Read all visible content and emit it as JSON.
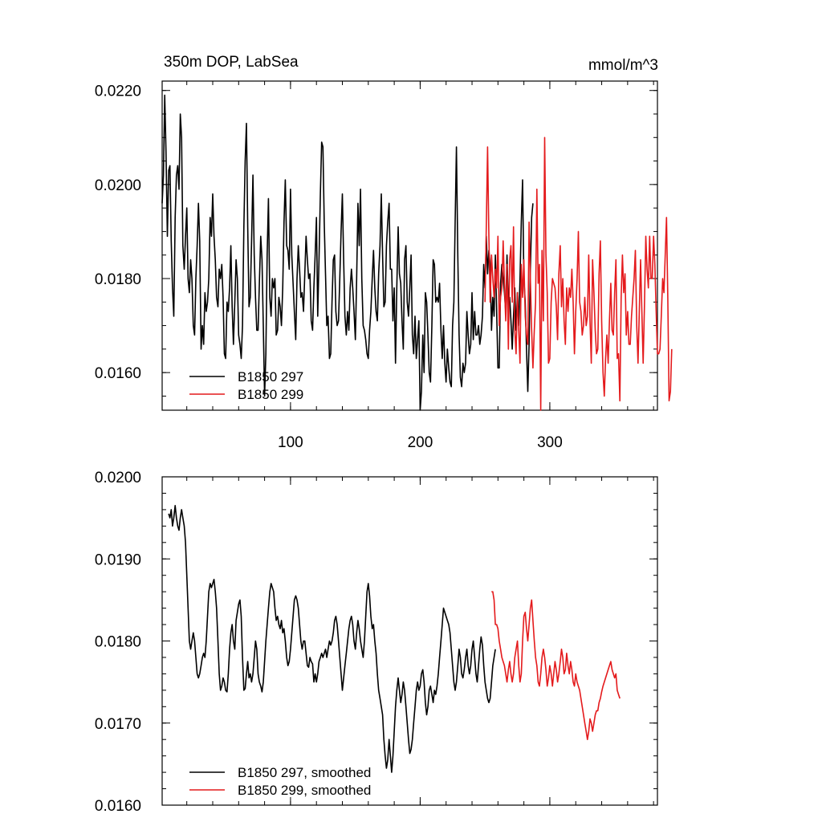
{
  "chart_data": [
    {
      "type": "line",
      "title": "350m DOP, LabSea",
      "units": "mmol/m^3",
      "xlabel": "",
      "ylabel": "",
      "xlim": [
        1,
        383
      ],
      "ylim": [
        0.0152,
        0.0222
      ],
      "y_ticks": [
        "0.0220",
        "0.0200",
        "0.0180",
        "0.0160"
      ],
      "x_ticks": [
        "100",
        "200",
        "300"
      ],
      "grid": false,
      "legend": "bottom-left",
      "series": [
        {
          "name": "B1850 297",
          "color": "#000000",
          "x_start": 1,
          "values": [
            0.0196,
            0.0202,
            0.0219,
            0.0207,
            0.0189,
            0.0203,
            0.0204,
            0.0188,
            0.0178,
            0.0172,
            0.0193,
            0.0202,
            0.0204,
            0.0199,
            0.0215,
            0.021,
            0.0187,
            0.0182,
            0.0189,
            0.0195,
            0.018,
            0.0177,
            0.0184,
            0.018,
            0.017,
            0.0168,
            0.018,
            0.0187,
            0.0196,
            0.0188,
            0.0165,
            0.017,
            0.0166,
            0.0177,
            0.0173,
            0.0175,
            0.018,
            0.0193,
            0.0189,
            0.0198,
            0.0189,
            0.0184,
            0.0176,
            0.0174,
            0.0182,
            0.018,
            0.0183,
            0.0176,
            0.0164,
            0.0163,
            0.0175,
            0.0173,
            0.0178,
            0.0187,
            0.0174,
            0.0166,
            0.0175,
            0.0184,
            0.018,
            0.0168,
            0.0166,
            0.0163,
            0.017,
            0.0191,
            0.0205,
            0.0213,
            0.0191,
            0.0174,
            0.0176,
            0.0188,
            0.0202,
            0.0185,
            0.0176,
            0.0169,
            0.0169,
            0.0179,
            0.0189,
            0.0184,
            0.017,
            0.0155,
            0.0164,
            0.0185,
            0.0197,
            0.0176,
            0.0172,
            0.018,
            0.0178,
            0.018,
            0.0168,
            0.0169,
            0.0176,
            0.0174,
            0.017,
            0.0178,
            0.0192,
            0.0201,
            0.0187,
            0.0186,
            0.0182,
            0.0199,
            0.0185,
            0.0179,
            0.0173,
            0.0167,
            0.018,
            0.0187,
            0.0182,
            0.0176,
            0.0177,
            0.0173,
            0.0181,
            0.0189,
            0.0184,
            0.018,
            0.0181,
            0.0171,
            0.0169,
            0.0178,
            0.0185,
            0.0193,
            0.0172,
            0.0184,
            0.0198,
            0.0209,
            0.0208,
            0.0192,
            0.0181,
            0.017,
            0.0172,
            0.0163,
            0.0164,
            0.0175,
            0.0184,
            0.0185,
            0.0173,
            0.017,
            0.0171,
            0.018,
            0.019,
            0.0198,
            0.0184,
            0.0172,
            0.0168,
            0.0173,
            0.0169,
            0.0178,
            0.0182,
            0.0178,
            0.0173,
            0.0167,
            0.018,
            0.0196,
            0.0187,
            0.0199,
            0.018,
            0.017,
            0.0169,
            0.0167,
            0.0164,
            0.0163,
            0.0169,
            0.0173,
            0.018,
            0.0186,
            0.0178,
            0.0173,
            0.0171,
            0.0181,
            0.0187,
            0.0198,
            0.0185,
            0.0174,
            0.0175,
            0.0187,
            0.0192,
            0.0196,
            0.0182,
            0.0182,
            0.0171,
            0.0178,
            0.0162,
            0.0178,
            0.0191,
            0.0181,
            0.0179,
            0.0171,
            0.0165,
            0.0184,
            0.0187,
            0.0175,
            0.0172,
            0.0178,
            0.0185,
            0.0168,
            0.0164,
            0.0172,
            0.0163,
            0.0167,
            0.0171,
            0.0152,
            0.0156,
            0.0168,
            0.016,
            0.0177,
            0.0175,
            0.0168,
            0.016,
            0.0158,
            0.017,
            0.0184,
            0.0183,
            0.0175,
            0.0176,
            0.0175,
            0.0179,
            0.0169,
            0.0163,
            0.017,
            0.0162,
            0.0158,
            0.0165,
            0.0161,
            0.0158,
            0.0157,
            0.017,
            0.0175,
            0.0192,
            0.0208,
            0.0185,
            0.0168,
            0.0159,
            0.0157,
            0.0162,
            0.016,
            0.0162,
            0.0173,
            0.0168,
            0.0164,
            0.0166,
            0.0177,
            0.0167,
            0.0173,
            0.0168,
            0.0168,
            0.017,
            0.0166,
            0.0168,
            0.0172,
            0.0183,
            0.0178,
            0.0189,
            0.0181,
            0.0186,
            0.0183,
            0.0169,
            0.0176,
            0.0172,
            0.0185,
            0.0173,
            0.0161,
            0.0161,
            0.0179,
            0.0183,
            0.018,
            0.0177,
            0.0173,
            0.0185,
            0.0174,
            0.0176,
            0.0171,
            0.0165,
            0.0172,
            0.0178,
            0.0169,
            0.0177,
            0.017,
            0.018,
            0.0192,
            0.0201,
            0.018,
            0.0175,
            0.0165,
            0.0156,
            0.0166,
            0.0182,
            0.0193,
            0.0196
          ]
        },
        {
          "name": "B1850 299",
          "color": "#e41a1c",
          "x_start": 250,
          "values": [
            0.0175,
            0.0191,
            0.0208,
            0.0189,
            0.0175,
            0.0185,
            0.018,
            0.0176,
            0.0182,
            0.0178,
            0.0189,
            0.017,
            0.0176,
            0.0178,
            0.0188,
            0.0179,
            0.0171,
            0.0183,
            0.0165,
            0.0184,
            0.0187,
            0.0175,
            0.0191,
            0.0169,
            0.0164,
            0.0177,
            0.0169,
            0.0162,
            0.0183,
            0.0176,
            0.0184,
            0.0172,
            0.0168,
            0.0166,
            0.0192,
            0.018,
            0.0169,
            0.0161,
            0.0169,
            0.0175,
            0.0199,
            0.0179,
            0.0183,
            0.0152,
            0.0186,
            0.0171,
            0.021,
            0.0185,
            0.0177,
            0.0162,
            0.0163,
            0.0175,
            0.018,
            0.0179,
            0.0178,
            0.0174,
            0.0167,
            0.0181,
            0.0187,
            0.0174,
            0.018,
            0.0171,
            0.0166,
            0.0178,
            0.0173,
            0.0178,
            0.0176,
            0.0182,
            0.0175,
            0.0164,
            0.0173,
            0.018,
            0.019,
            0.0175,
            0.0173,
            0.0168,
            0.017,
            0.0176,
            0.017,
            0.0172,
            0.0185,
            0.0171,
            0.0162,
            0.0184,
            0.0177,
            0.0169,
            0.0164,
            0.0165,
            0.0181,
            0.0188,
            0.0171,
            0.016,
            0.0155,
            0.0163,
            0.0168,
            0.0162,
            0.0171,
            0.0179,
            0.0169,
            0.0168,
            0.0177,
            0.0184,
            0.0163,
            0.0164,
            0.0154,
            0.0176,
            0.0185,
            0.0177,
            0.0181,
            0.0168,
            0.0173,
            0.0166,
            0.0166,
            0.0172,
            0.0176,
            0.018,
            0.0186,
            0.017,
            0.0162,
            0.0173,
            0.0184,
            0.0173,
            0.0162,
            0.0174,
            0.0189,
            0.0182,
            0.0178,
            0.0189,
            0.018,
            0.018,
            0.0189,
            0.0183,
            0.0173,
            0.0164,
            0.0164,
            0.0165,
            0.0172,
            0.018,
            0.0177,
            0.0185,
            0.0193,
            0.0176,
            0.0154,
            0.0156,
            0.0165
          ]
        }
      ]
    },
    {
      "type": "line",
      "title": "",
      "xlabel": "",
      "ylabel": "",
      "xlim": [
        1,
        383
      ],
      "ylim": [
        0.016,
        0.02
      ],
      "y_ticks": [
        "0.0200",
        "0.0190",
        "0.0180",
        "0.0170",
        "0.0160"
      ],
      "x_ticks": [],
      "grid": false,
      "legend": "bottom-left",
      "series": [
        {
          "name": "B1850 297, smoothed",
          "color": "#000000",
          "x_start": 6,
          "values": [
            0.01955,
            0.0195,
            0.0196,
            0.0194,
            0.0195,
            0.01965,
            0.0195,
            0.0194,
            0.01935,
            0.0195,
            0.0196,
            0.0195,
            0.0194,
            0.0192,
            0.0188,
            0.0184,
            0.018,
            0.0179,
            0.018,
            0.0181,
            0.018,
            0.0178,
            0.0176,
            0.01755,
            0.0176,
            0.0177,
            0.0178,
            0.01785,
            0.0178,
            0.018,
            0.0183,
            0.0186,
            0.0187,
            0.01865,
            0.0187,
            0.01875,
            0.0186,
            0.0184,
            0.018,
            0.0176,
            0.0174,
            0.01745,
            0.01755,
            0.0175,
            0.0174,
            0.01738,
            0.0176,
            0.0179,
            0.0181,
            0.0182,
            0.018,
            0.0179,
            0.01825,
            0.01835,
            0.01845,
            0.0185,
            0.0183,
            0.0178,
            0.0174,
            0.01742,
            0.0176,
            0.01775,
            0.01755,
            0.0176,
            0.0175,
            0.0176,
            0.0178,
            0.018,
            0.0179,
            0.0176,
            0.0175,
            0.01745,
            0.01738,
            0.0175,
            0.01775,
            0.018,
            0.0182,
            0.0184,
            0.0186,
            0.0187,
            0.01865,
            0.0186,
            0.0184,
            0.01825,
            0.0183,
            0.0182,
            0.01815,
            0.01825,
            0.0181,
            0.01815,
            0.018,
            0.0178,
            0.0177,
            0.01775,
            0.0179,
            0.0181,
            0.0183,
            0.0185,
            0.01855,
            0.0185,
            0.0184,
            0.0182,
            0.018,
            0.0179,
            0.018,
            0.018,
            0.01785,
            0.0177,
            0.01768,
            0.0178,
            0.01775,
            0.01772,
            0.0175,
            0.0176,
            0.0175,
            0.0176,
            0.01775,
            0.0178,
            0.01785,
            0.0178,
            0.01785,
            0.0179,
            0.0178,
            0.0179,
            0.018,
            0.01795,
            0.018,
            0.0181,
            0.01825,
            0.0183,
            0.0182,
            0.018,
            0.0178,
            0.0176,
            0.0174,
            0.01755,
            0.0177,
            0.01785,
            0.018,
            0.01815,
            0.01825,
            0.0183,
            0.0182,
            0.018,
            0.0179,
            0.0181,
            0.01825,
            0.01815,
            0.018,
            0.0179,
            0.0178,
            0.018,
            0.0183,
            0.0186,
            0.0187,
            0.01855,
            0.0183,
            0.01815,
            0.0182,
            0.018,
            0.01785,
            0.0176,
            0.0174,
            0.0173,
            0.0172,
            0.0171,
            0.0168,
            0.0166,
            0.01645,
            0.01655,
            0.0168,
            0.0166,
            0.0164,
            0.0166,
            0.0169,
            0.0172,
            0.0174,
            0.01755,
            0.0174,
            0.01725,
            0.01735,
            0.0175,
            0.0174,
            0.0172,
            0.017,
            0.0168,
            0.01663,
            0.01668,
            0.0168,
            0.017,
            0.0172,
            0.0174,
            0.0175,
            0.0174,
            0.01745,
            0.0176,
            0.01765,
            0.0175,
            0.01725,
            0.0171,
            0.0172,
            0.0174,
            0.01745,
            0.01735,
            0.01725,
            0.0174,
            0.01735,
            0.01745,
            0.0176,
            0.0178,
            0.018,
            0.0182,
            0.0184,
            0.01835,
            0.0183,
            0.01825,
            0.0182,
            0.0181,
            0.0179,
            0.0177,
            0.0175,
            0.0174,
            0.0175,
            0.0177,
            0.0179,
            0.0178,
            0.0176,
            0.01755,
            0.01765,
            0.0178,
            0.0179,
            0.0177,
            0.0176,
            0.0177,
            0.0179,
            0.018,
            0.0178,
            0.0176,
            0.0175,
            0.0177,
            0.0179,
            0.01805,
            0.01795,
            0.0177,
            0.0175,
            0.0174,
            0.0173,
            0.01725,
            0.0173,
            0.0175,
            0.0177,
            0.0178,
            0.0179
          ]
        },
        {
          "name": "B1850 299, smoothed",
          "color": "#e41a1c",
          "x_start": 255,
          "values": [
            0.0186,
            0.0186,
            0.0185,
            0.0182,
            0.0182,
            0.01815,
            0.018,
            0.0179,
            0.0178,
            0.01775,
            0.0177,
            0.0176,
            0.0175,
            0.01765,
            0.01775,
            0.0176,
            0.0175,
            0.0176,
            0.0178,
            0.0179,
            0.018,
            0.0177,
            0.0175,
            0.0176,
            0.018,
            0.0183,
            0.01835,
            0.01815,
            0.018,
            0.0182,
            0.0184,
            0.0185,
            0.01825,
            0.018,
            0.0178,
            0.0177,
            0.0175,
            0.01745,
            0.0176,
            0.0178,
            0.0179,
            0.0178,
            0.01765,
            0.01745,
            0.01755,
            0.0177,
            0.0176,
            0.01745,
            0.0176,
            0.01775,
            0.01765,
            0.0175,
            0.0176,
            0.01775,
            0.0179,
            0.0178,
            0.0176,
            0.01765,
            0.01785,
            0.0177,
            0.0176,
            0.01775,
            0.01765,
            0.0175,
            0.01745,
            0.0176,
            0.0175,
            0.01745,
            0.0174,
            0.0173,
            0.0172,
            0.0171,
            0.017,
            0.0169,
            0.0168,
            0.0169,
            0.01705,
            0.017,
            0.0169,
            0.017,
            0.0171,
            0.01715,
            0.01715,
            0.01725,
            0.0173,
            0.01738,
            0.01745,
            0.0175,
            0.01755,
            0.0176,
            0.01765,
            0.0177,
            0.01775,
            0.01765,
            0.0176,
            0.01755,
            0.0176,
            0.0174,
            0.01735,
            0.0173
          ]
        }
      ]
    }
  ]
}
